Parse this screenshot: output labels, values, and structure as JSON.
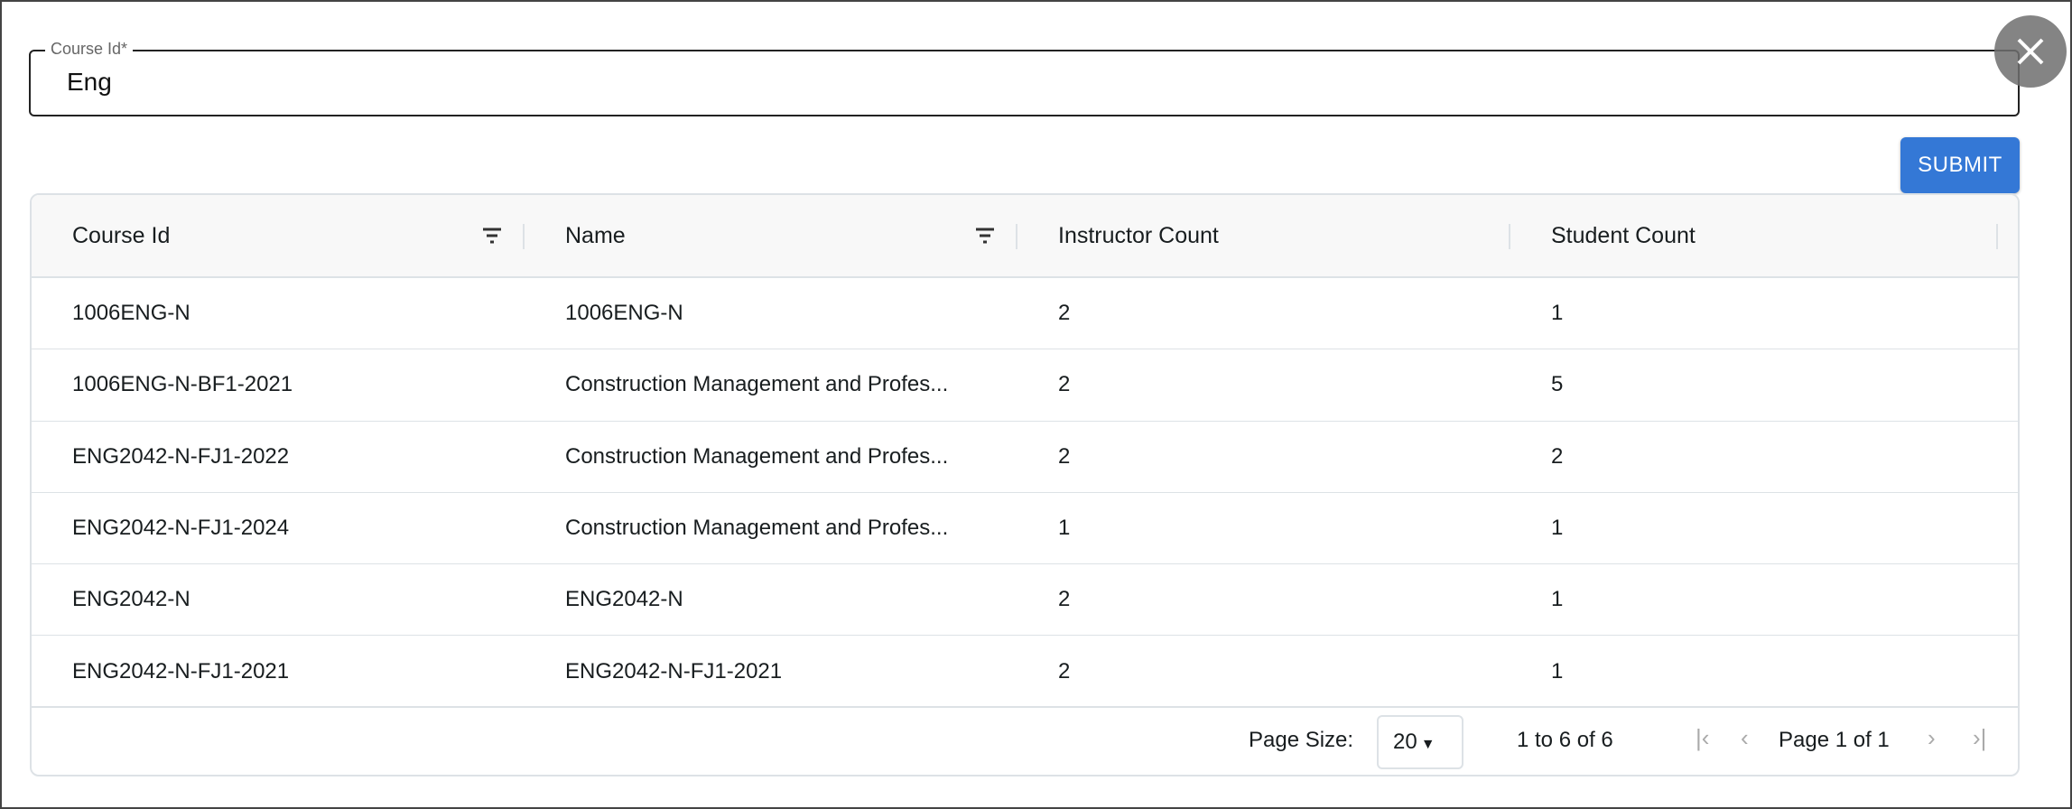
{
  "form": {
    "course_id_label": "Course Id*",
    "course_id_value": "Eng",
    "submit_label": "SUBMIT"
  },
  "close_icon": "close-icon",
  "accent_color": "#3478d6",
  "table": {
    "columns": [
      "Course Id",
      "Name",
      "Instructor Count",
      "Student Count"
    ],
    "rows": [
      [
        "1006ENG-N",
        "1006ENG-N",
        "2",
        "1"
      ],
      [
        "1006ENG-N-BF1-2021",
        "Construction Management and Profes...",
        "2",
        "5"
      ],
      [
        "ENG2042-N-FJ1-2022",
        "Construction Management and Profes...",
        "2",
        "2"
      ],
      [
        "ENG2042-N-FJ1-2024",
        "Construction Management and Profes...",
        "1",
        "1"
      ],
      [
        "ENG2042-N",
        "ENG2042-N",
        "2",
        "1"
      ],
      [
        "ENG2042-N-FJ1-2021",
        "ENG2042-N-FJ1-2021",
        "2",
        "1"
      ]
    ]
  },
  "pagination": {
    "page_size_label": "Page Size:",
    "page_size": "20",
    "range": "1 to 6 of 6",
    "page": "Page 1 of 1"
  }
}
